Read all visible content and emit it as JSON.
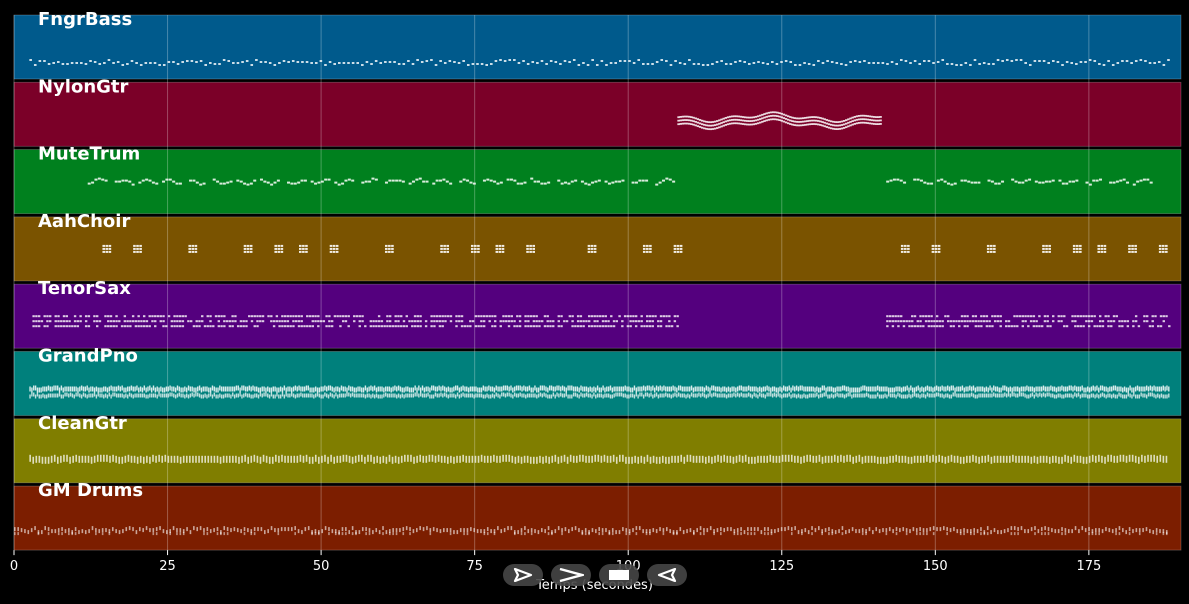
{
  "chart_data": {
    "type": "piano-roll",
    "xlabel": "Temps (secondes)",
    "xlim": [
      0,
      190
    ],
    "xticks": [
      0,
      25,
      50,
      75,
      100,
      125,
      150,
      175
    ],
    "tracks": [
      {
        "name": "FngrBass",
        "color": "#005a8c",
        "pattern": "bass",
        "segments": [
          [
            2.5,
            188
          ]
        ]
      },
      {
        "name": "NylonGtr",
        "color": "#7b0028",
        "pattern": "melody",
        "segments": [
          [
            108,
            141
          ]
        ]
      },
      {
        "name": "MuteTrum",
        "color": "#00801e",
        "pattern": "phrase",
        "segments": [
          [
            12,
            108
          ],
          [
            142,
            186
          ]
        ]
      },
      {
        "name": "AahChoir",
        "color": "#7a5300",
        "pattern": "chords",
        "positions": [
          15,
          20,
          29,
          38,
          43,
          47,
          52,
          61,
          70,
          75,
          79,
          84,
          94,
          103,
          108,
          145,
          150,
          159,
          168,
          173,
          177,
          182,
          187
        ]
      },
      {
        "name": "TenorSax",
        "color": "#54007e",
        "pattern": "dense",
        "segments": [
          [
            3,
            108
          ],
          [
            142,
            188
          ]
        ]
      },
      {
        "name": "GrandPno",
        "color": "#00807c",
        "pattern": "piano",
        "segments": [
          [
            2.5,
            188
          ]
        ]
      },
      {
        "name": "CleanGtr",
        "color": "#807e00",
        "pattern": "strum",
        "segments": [
          [
            2.5,
            188
          ]
        ]
      },
      {
        "name": "GM Drums",
        "color": "#7c1e00",
        "pattern": "drums",
        "segments": [
          [
            0,
            188
          ]
        ]
      }
    ]
  },
  "controls": {
    "play_icon": "play-outline-icon",
    "forward_icon": "chevron-right-icon",
    "stop_icon": "stop-icon",
    "rewind_icon": "rewind-icon"
  }
}
